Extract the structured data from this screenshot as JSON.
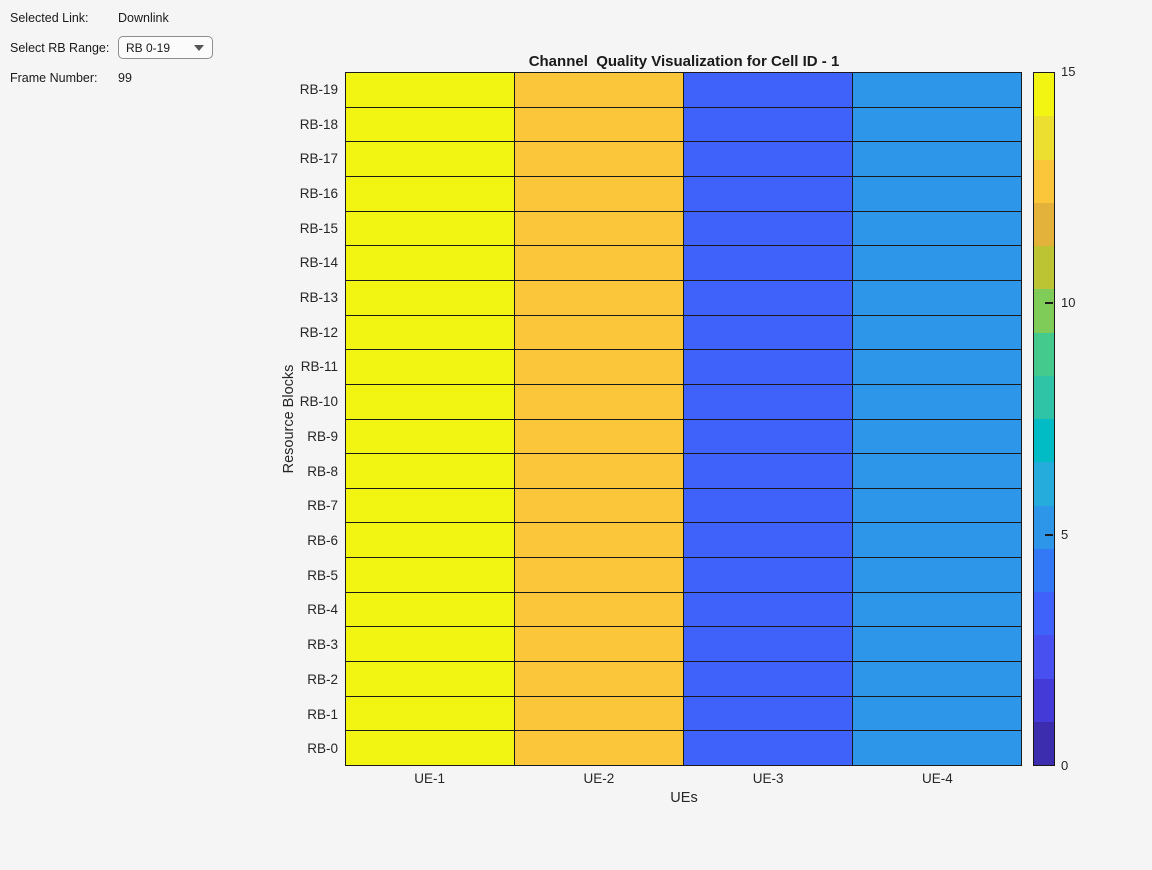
{
  "panel": {
    "selected_link_label": "Selected Link:",
    "selected_link_value": "Downlink",
    "rb_range_label": "Select RB Range:",
    "rb_range_value": "RB 0-19",
    "frame_label": "Frame Number:",
    "frame_value": "99"
  },
  "chart_data": {
    "type": "heatmap",
    "title": "Channel  Quality Visualization for Cell ID - 1",
    "xlabel": "UEs",
    "ylabel": "Resource Blocks",
    "x_categories": [
      "UE-1",
      "UE-2",
      "UE-3",
      "UE-4"
    ],
    "y_categories_top_to_bottom": [
      "RB-19",
      "RB-18",
      "RB-17",
      "RB-16",
      "RB-15",
      "RB-14",
      "RB-13",
      "RB-12",
      "RB-11",
      "RB-10",
      "RB-9",
      "RB-8",
      "RB-7",
      "RB-6",
      "RB-5",
      "RB-4",
      "RB-3",
      "RB-2",
      "RB-1",
      "RB-0"
    ],
    "column_values": [
      15,
      13,
      3,
      5
    ],
    "values": [
      [
        15,
        13,
        3,
        5
      ],
      [
        15,
        13,
        3,
        5
      ],
      [
        15,
        13,
        3,
        5
      ],
      [
        15,
        13,
        3,
        5
      ],
      [
        15,
        13,
        3,
        5
      ],
      [
        15,
        13,
        3,
        5
      ],
      [
        15,
        13,
        3,
        5
      ],
      [
        15,
        13,
        3,
        5
      ],
      [
        15,
        13,
        3,
        5
      ],
      [
        15,
        13,
        3,
        5
      ],
      [
        15,
        13,
        3,
        5
      ],
      [
        15,
        13,
        3,
        5
      ],
      [
        15,
        13,
        3,
        5
      ],
      [
        15,
        13,
        3,
        5
      ],
      [
        15,
        13,
        3,
        5
      ],
      [
        15,
        13,
        3,
        5
      ],
      [
        15,
        13,
        3,
        5
      ],
      [
        15,
        13,
        3,
        5
      ],
      [
        15,
        13,
        3,
        5
      ],
      [
        15,
        13,
        3,
        5
      ]
    ],
    "value_range": [
      0,
      15
    ],
    "grid_line_color": "#1a1a1a",
    "colorbar": {
      "min": 0,
      "max": 15,
      "ticks": [
        15,
        10,
        5,
        0
      ],
      "levels": 16,
      "colors_low_to_high": [
        "#3c2cae",
        "#433ad8",
        "#4850ef",
        "#3f62fb",
        "#3379f5",
        "#2d96e9",
        "#25abdc",
        "#02bcc5",
        "#2ec4a5",
        "#44ca8c",
        "#80cc58",
        "#bdc433",
        "#e3b23b",
        "#fcc63b",
        "#ecdf30",
        "#f1f511"
      ]
    }
  }
}
